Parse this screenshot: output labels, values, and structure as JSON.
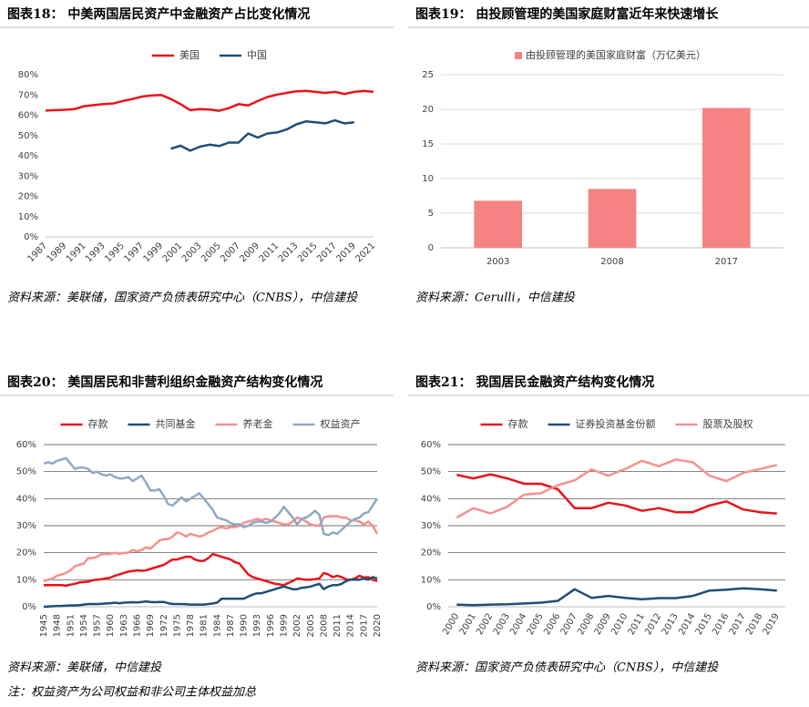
{
  "chart_data": [
    {
      "type": "line",
      "title": "图表18： 中美两国居民资产中金融资产占比变化情况",
      "source": "资料来源：美联储，国家资产负债表研究中心（CNBS），中信建投",
      "x": [
        1987,
        1988,
        1989,
        1990,
        1991,
        1992,
        1993,
        1994,
        1995,
        1996,
        1997,
        1998,
        1999,
        2000,
        2001,
        2002,
        2003,
        2004,
        2005,
        2006,
        2007,
        2008,
        2009,
        2010,
        2011,
        2012,
        2013,
        2014,
        2015,
        2016,
        2017,
        2018,
        2019,
        2020,
        2021
      ],
      "xlim": [
        1987,
        2021
      ],
      "xticks": [
        1987,
        1989,
        1991,
        1993,
        1995,
        1997,
        1999,
        2001,
        2003,
        2005,
        2007,
        2009,
        2011,
        2013,
        2015,
        2017,
        2019,
        2021
      ],
      "series": [
        {
          "name": "美国",
          "color": "#e8141b",
          "values": [
            62.3,
            62.5,
            62.7,
            63,
            64.5,
            65,
            65.5,
            65.8,
            67,
            68,
            69.2,
            69.8,
            70,
            68,
            65.5,
            62.5,
            63,
            62.8,
            62.2,
            63.5,
            65.5,
            64.8,
            67,
            69,
            70.2,
            71,
            71.8,
            72,
            71.5,
            71,
            71.5,
            70.5,
            71.5,
            72,
            71.5
          ]
        },
        {
          "name": "中国",
          "color": "#1f4e79",
          "values": [
            null,
            null,
            null,
            null,
            null,
            null,
            null,
            null,
            null,
            null,
            null,
            null,
            null,
            43.5,
            45,
            42.5,
            44.5,
            45.5,
            44.8,
            46.5,
            46.5,
            51,
            49,
            51,
            51.5,
            53,
            55.5,
            57,
            56.5,
            56,
            57.5,
            56,
            56.5,
            null,
            null
          ]
        }
      ],
      "ylim": [
        0,
        80
      ],
      "yticks": [
        {
          "value": 0,
          "label": "0%"
        },
        {
          "value": 10,
          "label": "10%"
        },
        {
          "value": 20,
          "label": "20%"
        },
        {
          "value": 30,
          "label": "30%"
        },
        {
          "value": 40,
          "label": "40%"
        },
        {
          "value": 50,
          "label": "50%"
        },
        {
          "value": 60,
          "label": "60%"
        },
        {
          "value": 70,
          "label": "70%"
        },
        {
          "value": 80,
          "label": "80%"
        }
      ],
      "grid": false
    },
    {
      "type": "bar",
      "title": "图表19： 由投顾管理的美国家庭财富近年来快速增长",
      "source": "资料来源：Cerulli，中信建投",
      "categories": [
        "2003",
        "2008",
        "2017"
      ],
      "series": [
        {
          "name": "由投顾管理的美国家庭财富（万亿美元）",
          "color": "#f58383",
          "values": [
            6.8,
            8.5,
            20.2
          ]
        }
      ],
      "ylim": [
        0,
        25
      ],
      "yticks": [
        0,
        5,
        10,
        15,
        20,
        25
      ],
      "grid": true,
      "grid_color": "#d9d9d9"
    },
    {
      "type": "line",
      "title": "图表20： 美国居民和非营利组织金融资产结构变化情况",
      "source": "资料来源：美联储，中信建投",
      "note": "注：权益资产为公司权益和非公司主体权益加总",
      "x": [
        1945,
        1946,
        1947,
        1948,
        1949,
        1950,
        1951,
        1952,
        1953,
        1954,
        1955,
        1956,
        1957,
        1958,
        1959,
        1960,
        1961,
        1962,
        1963,
        1964,
        1965,
        1966,
        1967,
        1968,
        1969,
        1970,
        1971,
        1972,
        1973,
        1974,
        1975,
        1976,
        1977,
        1978,
        1979,
        1980,
        1981,
        1982,
        1983,
        1984,
        1985,
        1986,
        1987,
        1988,
        1989,
        1990,
        1991,
        1992,
        1993,
        1994,
        1995,
        1996,
        1997,
        1998,
        1999,
        2000,
        2001,
        2002,
        2003,
        2004,
        2005,
        2006,
        2007,
        2008,
        2009,
        2010,
        2011,
        2012,
        2013,
        2014,
        2015,
        2016,
        2017,
        2018,
        2019,
        2020
      ],
      "xlim": [
        1945,
        2020
      ],
      "xticks": [
        1945,
        1948,
        1951,
        1954,
        1957,
        1960,
        1963,
        1966,
        1969,
        1972,
        1975,
        1978,
        1981,
        1984,
        1987,
        1990,
        1993,
        1996,
        1999,
        2002,
        2005,
        2008,
        2011,
        2014,
        2017,
        2020
      ],
      "series": [
        {
          "name": "存款",
          "color": "#e8141b",
          "values": [
            8,
            8,
            8,
            8,
            8,
            7.8,
            8.2,
            8.5,
            9,
            9.2,
            9.3,
            9.8,
            10,
            10.2,
            10.5,
            10.8,
            11.5,
            12,
            12.5,
            13,
            13.2,
            13.5,
            13.3,
            13.5,
            14,
            14.5,
            15,
            15.5,
            16.5,
            17.5,
            17.5,
            18,
            18.5,
            18.5,
            17.5,
            17,
            17,
            18,
            19.5,
            19,
            18.5,
            18,
            17.5,
            16.5,
            16,
            14,
            12,
            11,
            10.5,
            10,
            9.5,
            9,
            8.5,
            8.3,
            8,
            8.8,
            9.5,
            10.5,
            10.2,
            10,
            10,
            10.2,
            10.5,
            12.5,
            12,
            11,
            11.5,
            11,
            10.2,
            10,
            10.5,
            11.5,
            10.8,
            11,
            10,
            9.5
          ]
        },
        {
          "name": "共同基金",
          "color": "#1f4e79",
          "values": [
            0,
            0.1,
            0.2,
            0.3,
            0.3,
            0.4,
            0.5,
            0.5,
            0.6,
            0.8,
            1,
            1,
            1,
            1.1,
            1.2,
            1.3,
            1.5,
            1.3,
            1.5,
            1.6,
            1.7,
            1.6,
            1.8,
            2,
            1.8,
            1.7,
            1.8,
            1.8,
            1.3,
            1,
            1,
            1,
            0.9,
            0.8,
            0.8,
            0.8,
            0.8,
            1,
            1.2,
            1.5,
            3,
            3,
            3,
            3,
            3,
            3,
            3.8,
            4.5,
            5,
            5,
            5.5,
            6,
            6.5,
            7,
            7.5,
            7,
            6.5,
            6.5,
            7,
            7.2,
            7.5,
            8,
            8.5,
            6.5,
            7.5,
            8,
            8,
            8.5,
            9.5,
            10,
            10,
            10,
            10.5,
            10,
            11,
            10.5
          ]
        },
        {
          "name": "养老金",
          "color": "#f4918f",
          "values": [
            9.5,
            10,
            10.5,
            11.5,
            12,
            12.5,
            13.5,
            15,
            15.5,
            16,
            18,
            18,
            18.5,
            19.5,
            19.5,
            19.5,
            20,
            19.5,
            20,
            20,
            21,
            20.5,
            21,
            22,
            21.5,
            23,
            24.5,
            25,
            25,
            26,
            27.5,
            27,
            26,
            27,
            26.5,
            26,
            26.5,
            27.5,
            28,
            29,
            29.5,
            29,
            29.5,
            29.5,
            30,
            31,
            31.5,
            32,
            32.5,
            32,
            32.5,
            32,
            31.5,
            31,
            30.5,
            30.5,
            31.5,
            33,
            32.5,
            31.5,
            30.5,
            30,
            30,
            33,
            33.5,
            33.5,
            33.5,
            33,
            33,
            32,
            32,
            31.5,
            30.5,
            31.5,
            30,
            27
          ]
        },
        {
          "name": "权益资产",
          "color": "#8fa9c2",
          "values": [
            53,
            53.5,
            53,
            54,
            54.5,
            55,
            53,
            51,
            51.5,
            51.5,
            51,
            49.5,
            50,
            49,
            48.5,
            49,
            48,
            47.5,
            47.5,
            48,
            46.5,
            47.5,
            48.5,
            46,
            43,
            43,
            43.5,
            41,
            38,
            37.5,
            39,
            40.5,
            39,
            40,
            41,
            42,
            40,
            38,
            36,
            33,
            32.5,
            32,
            31,
            30.5,
            30.5,
            29.5,
            30,
            31,
            31.5,
            31.5,
            31,
            31.5,
            33,
            34.5,
            37,
            35,
            33,
            30.5,
            32.5,
            33,
            34,
            35.5,
            34,
            27,
            26.5,
            27.5,
            27,
            28.5,
            30,
            31.5,
            32.5,
            33,
            34.5,
            35,
            37.5,
            40
          ]
        }
      ],
      "ylim": [
        0,
        60
      ],
      "yticks": [
        {
          "value": 0,
          "label": "0%"
        },
        {
          "value": 10,
          "label": "10%"
        },
        {
          "value": 20,
          "label": "20%"
        },
        {
          "value": 30,
          "label": "30%"
        },
        {
          "value": 40,
          "label": "40%"
        },
        {
          "value": 50,
          "label": "50%"
        },
        {
          "value": 60,
          "label": "60%"
        }
      ],
      "grid": true,
      "grid_color": "#404040"
    },
    {
      "type": "line",
      "title": "图表21： 我国居民金融资产结构变化情况",
      "source": "资料来源：国家资产负债表研究中心（CNBS），中信建投",
      "categories": [
        "2000",
        "2001",
        "2002",
        "2003",
        "2004",
        "2005",
        "2006",
        "2007",
        "2008",
        "2009",
        "2010",
        "2011",
        "2012",
        "2013",
        "2014",
        "2015",
        "2016",
        "2017",
        "2018",
        "2019"
      ],
      "series": [
        {
          "name": "存款",
          "color": "#e8141b",
          "values": [
            48.8,
            47.5,
            49,
            47.5,
            45.5,
            45.5,
            43.5,
            36.5,
            36.5,
            38.5,
            37.5,
            35.5,
            36.5,
            35,
            35,
            37.5,
            39,
            36,
            35,
            34.5
          ]
        },
        {
          "name": "证券投资基金份额",
          "color": "#1f4e79",
          "values": [
            0.8,
            0.6,
            0.8,
            0.9,
            1.2,
            1.5,
            2.2,
            6.5,
            3.3,
            4,
            3.3,
            2.8,
            3.2,
            3.2,
            4,
            6,
            6.3,
            6.8,
            6.5,
            6
          ]
        },
        {
          "name": "股票及股权",
          "color": "#f4918f",
          "values": [
            33,
            36.5,
            34.5,
            37,
            41.5,
            42,
            45,
            46.8,
            50.8,
            48.5,
            51,
            54,
            52,
            54.5,
            53.5,
            48.5,
            46.5,
            49.5,
            51,
            52.5
          ]
        }
      ],
      "ylim": [
        0,
        60
      ],
      "yticks": [
        {
          "value": 0,
          "label": "0%"
        },
        {
          "value": 10,
          "label": "10%"
        },
        {
          "value": 20,
          "label": "20%"
        },
        {
          "value": 30,
          "label": "30%"
        },
        {
          "value": 40,
          "label": "40%"
        },
        {
          "value": 50,
          "label": "50%"
        },
        {
          "value": 60,
          "label": "60%"
        }
      ],
      "grid": true,
      "grid_color": "#404040"
    }
  ]
}
